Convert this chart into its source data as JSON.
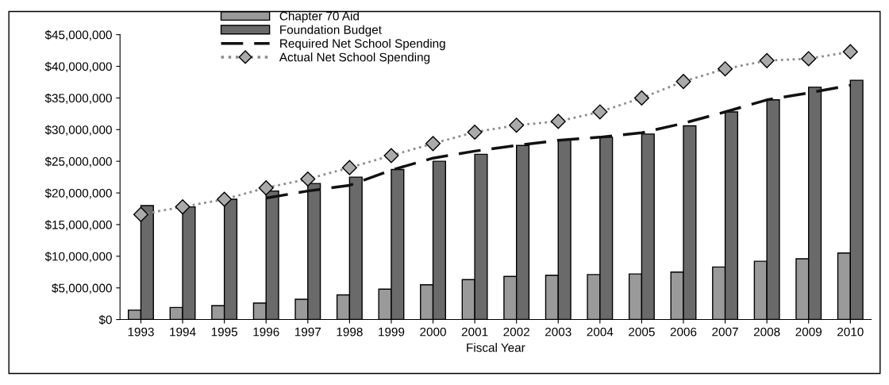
{
  "chart_data": {
    "type": "bar",
    "xlabel": "Fiscal Year",
    "categories": [
      "1993",
      "1994",
      "1995",
      "1996",
      "1997",
      "1998",
      "1999",
      "2000",
      "2001",
      "2002",
      "2003",
      "2004",
      "2005",
      "2006",
      "2007",
      "2008",
      "2009",
      "2010"
    ],
    "series": [
      {
        "name": "Chapter 70 Aid",
        "color": "#9a9a9a",
        "values": [
          1500000,
          1900000,
          2200000,
          2600000,
          3200000,
          3900000,
          4800000,
          5500000,
          6300000,
          6800000,
          7000000,
          7100000,
          7200000,
          7500000,
          8300000,
          9200000,
          9600000,
          10500000
        ]
      },
      {
        "name": "Foundation Budget",
        "color": "#6a6a6a",
        "values": [
          18000000,
          17800000,
          19000000,
          20300000,
          21500000,
          22500000,
          23700000,
          25000000,
          26100000,
          27500000,
          28400000,
          28800000,
          29300000,
          30600000,
          32800000,
          34700000,
          36700000,
          37800000
        ]
      },
      {
        "name": "Required Net School Spending",
        "type": "line",
        "color": "#111111",
        "line_style": "dashed",
        "marker": "none",
        "values": [
          null,
          null,
          null,
          19200000,
          20300000,
          21200000,
          23600000,
          25500000,
          26600000,
          27500000,
          28300000,
          28800000,
          29500000,
          31000000,
          32800000,
          34700000,
          35800000,
          37000000
        ]
      },
      {
        "name": "Actual Net School Spending",
        "type": "line",
        "color": "#8c8c8c",
        "line_style": "dotted",
        "marker": "diamond",
        "values": [
          16600000,
          17800000,
          19000000,
          20800000,
          22200000,
          24000000,
          25900000,
          27800000,
          29600000,
          30700000,
          31300000,
          32800000,
          35000000,
          37600000,
          39600000,
          40900000,
          41200000,
          42300000
        ]
      }
    ],
    "ylim": [
      0,
      45000000
    ],
    "yticks": [
      {
        "value": 0,
        "label": "$0"
      },
      {
        "value": 5000000,
        "label": "$5,000,000"
      },
      {
        "value": 10000000,
        "label": "$10,000,000"
      },
      {
        "value": 15000000,
        "label": "$15,000,000"
      },
      {
        "value": 20000000,
        "label": "$20,000,000"
      },
      {
        "value": 25000000,
        "label": "$25,000,000"
      },
      {
        "value": 30000000,
        "label": "$30,000,000"
      },
      {
        "value": 35000000,
        "label": "$35,000,000"
      },
      {
        "value": 40000000,
        "label": "$40,000,000"
      },
      {
        "value": 45000000,
        "label": "$45,000,000"
      }
    ],
    "grid": false,
    "legend": "top left"
  }
}
